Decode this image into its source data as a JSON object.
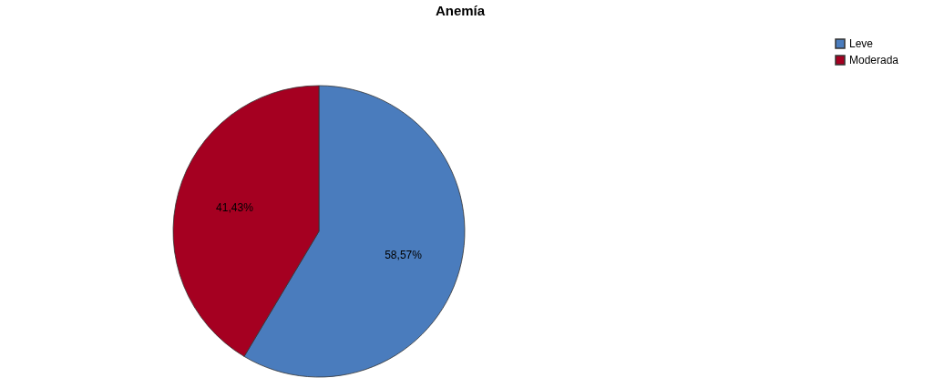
{
  "chart_data": {
    "type": "pie",
    "title": "Anemía",
    "categories": [
      "Leve",
      "Moderada"
    ],
    "values": [
      58.57,
      41.43
    ],
    "colors": [
      "#4a7cbd",
      "#a50021"
    ],
    "value_labels": [
      "58,57%",
      "41,43%"
    ],
    "legend": "top right"
  }
}
